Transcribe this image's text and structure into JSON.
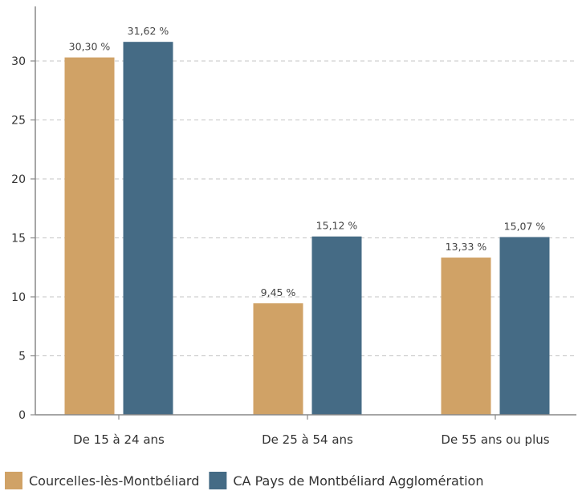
{
  "chart_data": {
    "type": "bar",
    "categories": [
      "De 15 à 24 ans",
      "De 25 à 54 ans",
      "De 55 ans ou plus"
    ],
    "series": [
      {
        "name": "Courcelles-lès-Montbéliard",
        "color": "#D0A266",
        "values": [
          30.3,
          9.45,
          13.33
        ],
        "labels": [
          "30,30 %",
          "9,45 %",
          "13,33 %"
        ]
      },
      {
        "name": "CA Pays de Montbéliard Agglomération",
        "color": "#456B85",
        "values": [
          31.62,
          15.12,
          15.07
        ],
        "labels": [
          "31,62 %",
          "15,12 %",
          "15,07 %"
        ]
      }
    ],
    "yticks": [
      "0",
      "5",
      "10",
      "15",
      "20",
      "25",
      "30"
    ],
    "ylim": [
      0,
      35
    ],
    "grid": true,
    "legend_position": "bottom-left"
  }
}
